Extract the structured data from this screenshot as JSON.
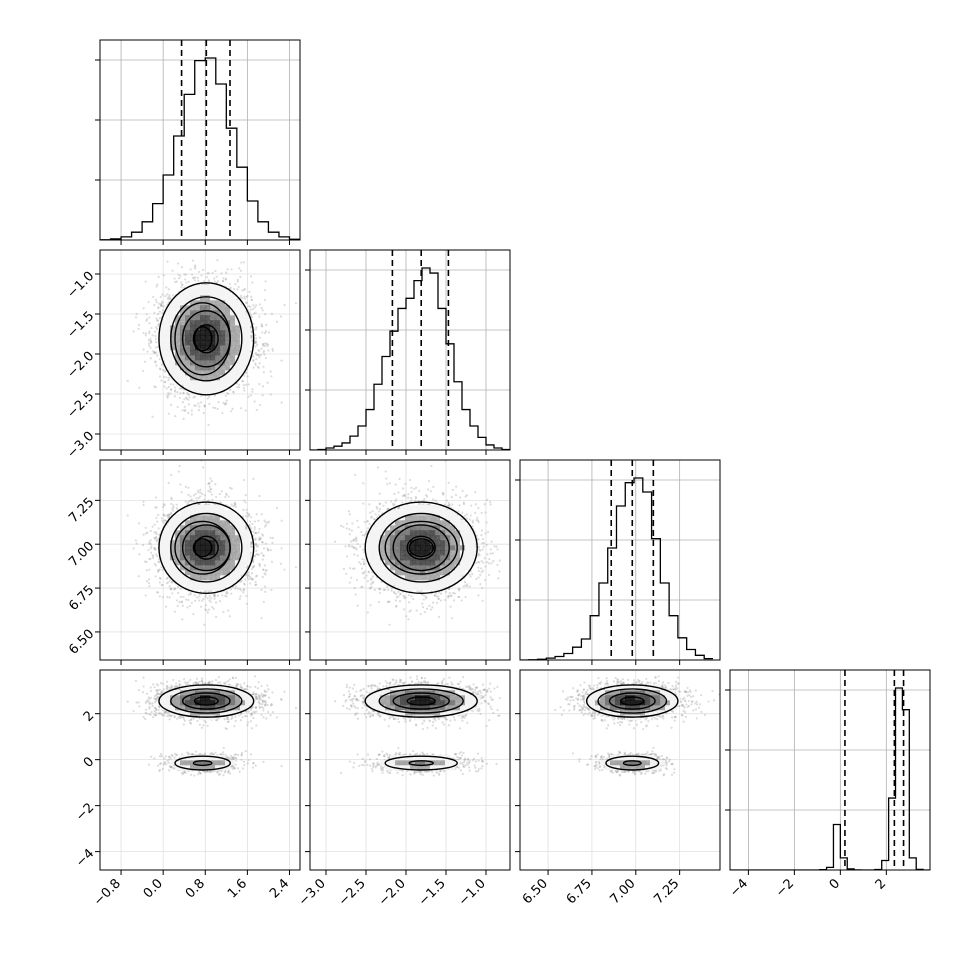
{
  "chart_data": {
    "type": "corner",
    "dims": 4,
    "variables": [
      {
        "index": 0,
        "range": [
          -1.2,
          2.6
        ],
        "ticks": [
          -0.8,
          0.0,
          0.8,
          1.6,
          2.4
        ],
        "tick_labels": [
          "−0.8",
          "0.0",
          "0.8",
          "1.6",
          "2.4"
        ],
        "quantiles": [
          0.35,
          0.82,
          1.27
        ],
        "hist_edges": [
          -1.2,
          -1.0,
          -0.8,
          -0.6,
          -0.4,
          -0.2,
          0.0,
          0.2,
          0.4,
          0.6,
          0.8,
          1.0,
          1.2,
          1.4,
          1.6,
          1.8,
          2.0,
          2.2,
          2.4,
          2.6
        ],
        "hist_counts": [
          1,
          4,
          12,
          30,
          70,
          140,
          250,
          400,
          560,
          690,
          700,
          600,
          430,
          280,
          150,
          70,
          30,
          12,
          3
        ]
      },
      {
        "index": 1,
        "range": [
          -3.2,
          -0.7
        ],
        "ticks": [
          -3.0,
          -2.5,
          -2.0,
          -1.5,
          -1.0
        ],
        "tick_labels": [
          "−3.0",
          "−2.5",
          "−2.0",
          "−1.5",
          "−1.0"
        ],
        "quantiles": [
          -2.17,
          -1.81,
          -1.47
        ],
        "hist_edges": [
          -3.2,
          -3.1,
          -3.0,
          -2.9,
          -2.8,
          -2.7,
          -2.6,
          -2.5,
          -2.4,
          -2.3,
          -2.2,
          -2.1,
          -2.0,
          -1.9,
          -1.8,
          -1.7,
          -1.6,
          -1.5,
          -1.4,
          -1.3,
          -1.2,
          -1.1,
          -1.0,
          -0.9,
          -0.8,
          -0.7
        ],
        "hist_counts": [
          0,
          2,
          8,
          15,
          28,
          55,
          95,
          160,
          260,
          370,
          470,
          560,
          600,
          670,
          720,
          700,
          560,
          420,
          270,
          160,
          95,
          50,
          20,
          8,
          2
        ]
      },
      {
        "index": 2,
        "range": [
          6.34,
          7.48
        ],
        "ticks": [
          6.5,
          6.75,
          7.0,
          7.25
        ],
        "tick_labels": [
          "6.50",
          "6.75",
          "7.00",
          "7.25"
        ],
        "quantiles": [
          6.86,
          6.98,
          7.1
        ],
        "hist_edges": [
          6.34,
          6.39,
          6.44,
          6.49,
          6.54,
          6.59,
          6.64,
          6.69,
          6.74,
          6.79,
          6.84,
          6.89,
          6.94,
          6.99,
          7.04,
          7.09,
          7.14,
          7.19,
          7.24,
          7.29,
          7.34,
          7.39,
          7.44
        ],
        "hist_counts": [
          0,
          1,
          3,
          8,
          15,
          28,
          55,
          90,
          190,
          330,
          480,
          660,
          760,
          780,
          720,
          520,
          330,
          190,
          95,
          45,
          20,
          6
        ]
      },
      {
        "index": 3,
        "range": [
          -4.8,
          3.9
        ],
        "ticks": [
          -4,
          -2,
          0,
          2
        ],
        "tick_labels": [
          "−4",
          "−2",
          "0",
          "2"
        ],
        "quantiles": [
          0.2,
          2.35,
          2.75
        ],
        "hist_edges": [
          -4.8,
          -4.5,
          -4.2,
          -3.9,
          -3.6,
          -3.3,
          -3.0,
          -2.7,
          -2.4,
          -2.1,
          -1.8,
          -1.5,
          -1.2,
          -0.9,
          -0.6,
          -0.3,
          0.0,
          0.3,
          0.6,
          0.9,
          1.2,
          1.5,
          1.8,
          2.1,
          2.4,
          2.7,
          3.0,
          3.3,
          3.6,
          3.9
        ],
        "hist_counts": [
          0,
          0,
          0,
          0,
          0,
          0,
          0,
          0,
          0,
          0,
          0,
          0,
          0,
          8,
          60,
          1050,
          280,
          25,
          1,
          0,
          0,
          10,
          220,
          1660,
          4200,
          3700,
          280,
          15,
          0
        ]
      }
    ],
    "blobs": [
      {
        "weight": 0.8,
        "center": [
          0.82,
          -1.81,
          6.98,
          2.55
        ],
        "sigma": [
          0.45,
          0.35,
          0.13,
          0.35
        ]
      },
      {
        "weight": 0.2,
        "center": [
          0.75,
          -1.81,
          6.98,
          -0.15
        ],
        "sigma": [
          0.35,
          0.3,
          0.1,
          0.2
        ]
      }
    ],
    "grid": true,
    "xlabel": "",
    "ylabel": "",
    "title": ""
  }
}
